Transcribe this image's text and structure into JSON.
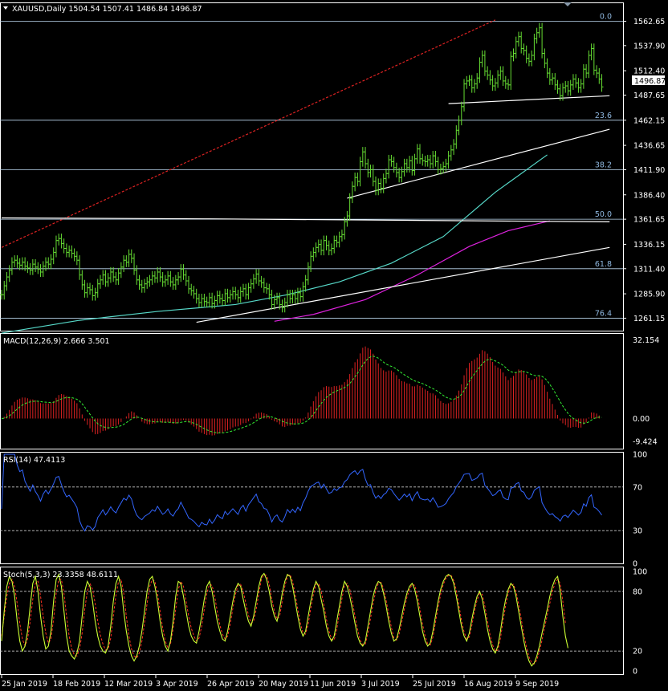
{
  "window": {
    "symbol_line": "XAUUSD,Daily  1504.54 1507.41 1486.84 1496.87",
    "current_price": "1496.87"
  },
  "colors": {
    "bg": "#000000",
    "grid": "#ffffff",
    "bull": "#66dd33",
    "macd_hist": "#dd2222",
    "signal": "#33ee33",
    "rsi": "#3366ff",
    "stoch_main": "#ccff33",
    "stoch_signal": "#ff3322",
    "fib_line": "#bcd8f0",
    "fib_text": "#8fb8e0",
    "ma_fast": "#56d8c8",
    "ma_slow": "#dd22dd",
    "trend_red": "#dd2222",
    "trend_white": "#ffffff"
  },
  "chart_data": [
    {
      "type": "candlestick",
      "title": "XAUUSD,Daily",
      "ohlc_header": {
        "open": 1504.54,
        "high": 1507.41,
        "low": 1486.84,
        "close": 1496.87
      },
      "ylim": [
        1255,
        1572
      ],
      "y_ticks": [
        "1562.65",
        "1537.90",
        "1512.40",
        "1487.65",
        "1462.15",
        "1436.65",
        "1411.90",
        "1386.40",
        "1361.65",
        "1336.15",
        "1311.40",
        "1285.90",
        "1261.15"
      ],
      "x_tick_labels": [
        "25 Jan 2019",
        "18 Feb 2019",
        "12 Mar 2019",
        "3 Apr 2019",
        "26 Apr 2019",
        "20 May 2019",
        "11 Jun 2019",
        "3 Jul 2019",
        "25 Jul 2019",
        "16 Aug 2019",
        "9 Sep 2019"
      ],
      "closes": [
        1285,
        1294,
        1303,
        1310,
        1318,
        1320,
        1317,
        1315,
        1318,
        1314,
        1312,
        1310,
        1316,
        1313,
        1311,
        1308,
        1314,
        1318,
        1316,
        1321,
        1328,
        1340,
        1342,
        1337,
        1332,
        1328,
        1330,
        1327,
        1324,
        1320,
        1305,
        1295,
        1287,
        1292,
        1290,
        1284,
        1287,
        1296,
        1300,
        1305,
        1298,
        1302,
        1308,
        1303,
        1300,
        1307,
        1313,
        1320,
        1318,
        1326,
        1322,
        1310,
        1300,
        1295,
        1292,
        1296,
        1298,
        1300,
        1304,
        1302,
        1308,
        1303,
        1298,
        1300,
        1304,
        1298,
        1295,
        1300,
        1303,
        1311,
        1305,
        1299,
        1291,
        1289,
        1286,
        1281,
        1277,
        1281,
        1278,
        1277,
        1282,
        1276,
        1279,
        1284,
        1281,
        1279,
        1286,
        1282,
        1285,
        1288,
        1285,
        1282,
        1288,
        1291,
        1285,
        1292,
        1296,
        1301,
        1306,
        1299,
        1297,
        1292,
        1291,
        1285,
        1275,
        1280,
        1282,
        1275,
        1272,
        1277,
        1285,
        1281,
        1285,
        1281,
        1287,
        1283,
        1293,
        1300,
        1313,
        1324,
        1328,
        1333,
        1336,
        1330,
        1340,
        1335,
        1330,
        1332,
        1340,
        1338,
        1344,
        1346,
        1359,
        1365,
        1383,
        1395,
        1404,
        1400,
        1420,
        1430,
        1418,
        1409,
        1412,
        1400,
        1391,
        1398,
        1393,
        1403,
        1408,
        1422,
        1420,
        1414,
        1409,
        1404,
        1410,
        1418,
        1414,
        1421,
        1411,
        1423,
        1433,
        1423,
        1421,
        1420,
        1422,
        1418,
        1426,
        1420,
        1412,
        1413,
        1415,
        1418,
        1426,
        1432,
        1438,
        1452,
        1462,
        1476,
        1499,
        1502,
        1503,
        1495,
        1499,
        1505,
        1521,
        1528,
        1512,
        1508,
        1503,
        1497,
        1500,
        1508,
        1512,
        1502,
        1499,
        1498,
        1527,
        1530,
        1542,
        1547,
        1535,
        1533,
        1525,
        1522,
        1528,
        1545,
        1551,
        1556,
        1530,
        1520,
        1510,
        1503,
        1505,
        1498,
        1494,
        1487,
        1495,
        1497,
        1492,
        1498,
        1504,
        1500,
        1495,
        1499,
        1514,
        1510,
        1528,
        1535,
        1513,
        1510,
        1504,
        1496
      ],
      "fibonacci": [
        {
          "level": "0.0",
          "price": 1562.65
        },
        {
          "level": "23.6",
          "price": 1462.15
        },
        {
          "level": "38.2",
          "price": 1411.9
        },
        {
          "level": "50.0",
          "price": 1361.65
        },
        {
          "level": "61.8",
          "price": 1311.4
        },
        {
          "level": "76.4",
          "price": 1261.15
        }
      ],
      "moving_averages": [
        {
          "color": "#56d8c8",
          "points": [
            [
              0,
              1246
            ],
            [
              30,
              1259
            ],
            [
              60,
              1268
            ],
            [
              90,
              1275
            ],
            [
              110,
              1285
            ],
            [
              130,
              1298
            ],
            [
              150,
              1317
            ],
            [
              170,
              1344
            ],
            [
              190,
              1389
            ],
            [
              210,
              1427
            ]
          ]
        },
        {
          "color": "#dd22dd",
          "points": [
            [
              105,
              1258
            ],
            [
              120,
              1265
            ],
            [
              140,
              1280
            ],
            [
              160,
              1305
            ],
            [
              180,
              1334
            ],
            [
              195,
              1350
            ],
            [
              211,
              1360
            ]
          ]
        }
      ],
      "trendlines": [
        {
          "style": "dashed",
          "color": "#dd2222",
          "points": [
            [
              0,
              1333
            ],
            [
              190,
              1564
            ]
          ]
        },
        {
          "style": "solid",
          "color": "#ffffff",
          "points": [
            [
              0,
              1363
            ],
            [
              80,
              1362
            ],
            [
              234,
              1359
            ]
          ]
        },
        {
          "style": "solid",
          "color": "#ffffff",
          "points": [
            [
              75,
              1257
            ],
            [
              234,
              1333
            ]
          ]
        },
        {
          "style": "solid",
          "color": "#ffffff",
          "points": [
            [
              133,
              1383
            ],
            [
              234,
              1453
            ]
          ]
        },
        {
          "style": "solid",
          "color": "#ffffff",
          "points": [
            [
              172,
              1479
            ],
            [
              234,
              1487
            ]
          ]
        }
      ]
    },
    {
      "type": "bar",
      "title": "MACD(12,26,9) 2.666 3.501",
      "ylim": [
        -12,
        34
      ],
      "y_ticks": [
        "32.154",
        "0.00",
        "-9.424"
      ]
    },
    {
      "type": "line",
      "title": "RSI(14) 47.4113",
      "ylim": [
        0,
        100
      ],
      "y_ticks": [
        "100",
        "70",
        "30",
        "0"
      ],
      "levels": [
        70,
        30
      ]
    },
    {
      "type": "line",
      "title": "Stoch(5,3,3) 23.3358 48.6111",
      "ylim": [
        0,
        100
      ],
      "y_ticks": [
        "100",
        "80",
        "20",
        "0"
      ],
      "levels": [
        80,
        20
      ],
      "main_k": [
        30,
        60,
        85,
        95,
        90,
        75,
        50,
        30,
        20,
        25,
        40,
        65,
        88,
        95,
        80,
        55,
        35,
        22,
        25,
        40,
        70,
        92,
        97,
        85,
        60,
        35,
        20,
        15,
        12,
        18,
        30,
        55,
        80,
        90,
        85,
        70,
        50,
        35,
        25,
        20,
        18,
        25,
        45,
        70,
        88,
        95,
        85,
        60,
        40,
        25,
        15,
        10,
        15,
        25,
        40,
        60,
        80,
        92,
        95,
        85,
        70,
        50,
        35,
        25,
        20,
        30,
        50,
        75,
        90,
        88,
        75,
        60,
        45,
        35,
        30,
        28,
        40,
        55,
        72,
        85,
        90,
        80,
        65,
        50,
        40,
        32,
        30,
        40,
        55,
        70,
        82,
        88,
        85,
        72,
        60,
        50,
        45,
        55,
        70,
        85,
        95,
        98,
        92,
        80,
        65,
        55,
        50,
        62,
        78,
        90,
        97,
        95,
        85,
        70,
        55,
        42,
        35,
        40,
        55,
        70,
        82,
        90,
        85,
        72,
        60,
        45,
        35,
        30,
        35,
        50,
        65,
        80,
        90,
        85,
        75,
        62,
        48,
        35,
        28,
        25,
        30,
        45,
        60,
        75,
        85,
        90,
        88,
        78,
        65,
        50,
        38,
        30,
        32,
        42,
        55,
        68,
        78,
        85,
        88,
        82,
        70,
        55,
        40,
        30,
        25,
        28,
        40,
        55,
        70,
        82,
        90,
        95,
        97,
        95,
        88,
        75,
        60,
        45,
        35,
        30,
        38,
        52,
        65,
        75,
        80,
        72,
        58,
        42,
        30,
        22,
        18,
        25,
        40,
        58,
        72,
        82,
        88,
        85,
        75,
        60,
        45,
        30,
        18,
        10,
        5,
        8,
        15,
        25,
        38,
        50,
        62,
        75,
        85,
        92,
        95,
        80,
        55,
        35,
        23
      ],
      "signal_d": [
        35,
        55,
        75,
        88,
        92,
        85,
        68,
        48,
        32,
        25,
        32,
        50,
        72,
        88,
        90,
        75,
        55,
        38,
        28,
        32,
        52,
        78,
        92,
        92,
        78,
        55,
        35,
        22,
        16,
        15,
        22,
        38,
        62,
        80,
        88,
        82,
        68,
        50,
        36,
        27,
        21,
        22,
        33,
        55,
        76,
        90,
        92,
        78,
        55,
        35,
        22,
        15,
        13,
        18,
        30,
        48,
        68,
        85,
        92,
        90,
        78,
        60,
        43,
        30,
        23,
        27,
        42,
        62,
        82,
        90,
        85,
        70,
        55,
        43,
        35,
        30,
        33,
        45,
        62,
        78,
        87,
        86,
        75,
        60,
        46,
        37,
        32,
        35,
        47,
        63,
        77,
        86,
        87,
        80,
        68,
        56,
        48,
        50,
        62,
        78,
        92,
        97,
        96,
        87,
        72,
        60,
        52,
        55,
        70,
        85,
        95,
        97,
        90,
        77,
        62,
        48,
        38,
        37,
        47,
        63,
        77,
        87,
        88,
        80,
        67,
        52,
        40,
        32,
        31,
        42,
        58,
        73,
        86,
        88,
        82,
        70,
        55,
        42,
        31,
        26,
        27,
        38,
        53,
        68,
        80,
        88,
        89,
        83,
        71,
        57,
        44,
        33,
        31,
        37,
        49,
        62,
        74,
        82,
        87,
        86,
        77,
        62,
        47,
        35,
        27,
        26,
        34,
        49,
        64,
        77,
        87,
        93,
        96,
        96,
        91,
        81,
        66,
        51,
        39,
        32,
        34,
        46,
        60,
        71,
        78,
        77,
        65,
        50,
        36,
        26,
        20,
        21,
        33,
        50,
        66,
        78,
        86,
        87,
        80,
        67,
        52,
        37,
        24,
        14,
        8,
        7,
        11,
        20,
        31,
        44,
        56,
        68,
        80,
        88,
        92,
        88,
        70,
        48
      ]
    }
  ]
}
